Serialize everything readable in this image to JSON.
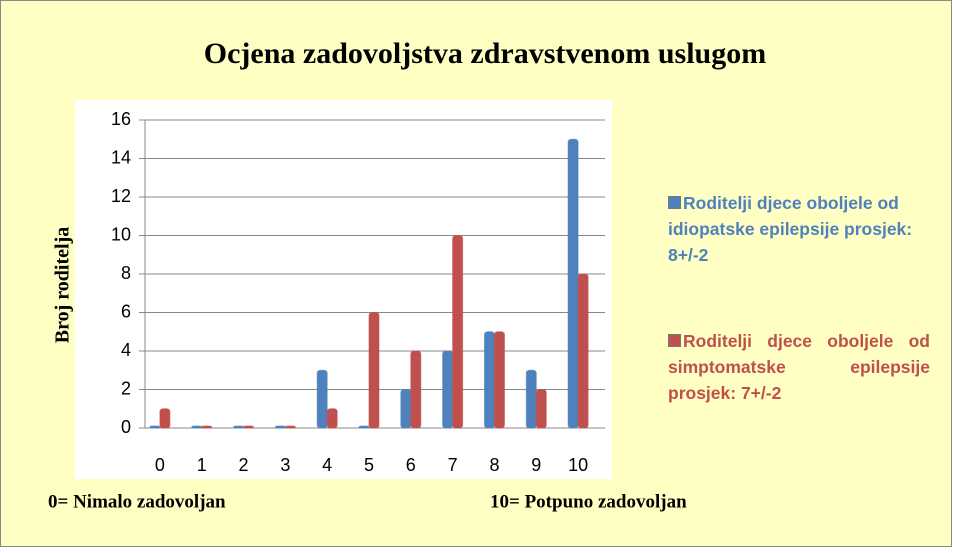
{
  "chart_data": {
    "type": "bar",
    "title": "Ocjena zadovoljstva zdravstvenom uslugom",
    "y_label": "Broj roditelja",
    "categories": [
      "0",
      "1",
      "2",
      "3",
      "4",
      "5",
      "6",
      "7",
      "8",
      "9",
      "10"
    ],
    "series": [
      {
        "name": "Roditelji djece oboljele od idiopatske epilepsije prosjek: 8+/-2",
        "color": "#4f81bd",
        "values": [
          0,
          0,
          0,
          0,
          3,
          0,
          2,
          4,
          5,
          3,
          15
        ]
      },
      {
        "name": "Roditelji djece oboljele od simptomatske epilepsije prosjek: 7+/-2",
        "color": "#c0504d",
        "values": [
          1,
          0,
          0,
          0,
          1,
          6,
          4,
          10,
          5,
          2,
          8
        ]
      }
    ],
    "ylim": [
      0,
      16
    ],
    "yticks": [
      0,
      2,
      4,
      6,
      8,
      10,
      12,
      14,
      16
    ],
    "grid": true,
    "legend": "right",
    "annotations": [
      "0= Nimalo zadovoljan",
      "10= Potpuno zadovoljan"
    ]
  }
}
